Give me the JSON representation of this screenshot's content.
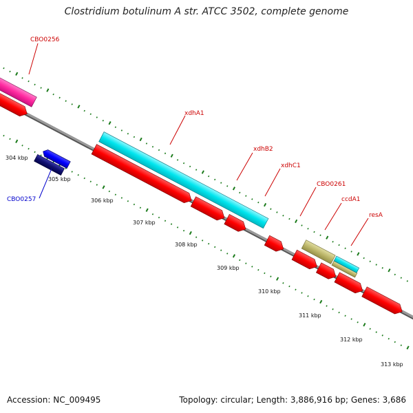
{
  "title": "Clostridium botulinum A str. ATCC 3502, complete genome",
  "footer": {
    "accession": "Accession: NC_009495",
    "topology": "Topology: circular; Length: 3,886,916 bp; Genes: 3,686"
  },
  "colors": {
    "backbone": "#909090",
    "cds_forward": "#ff0000",
    "cds_reverse": "#0000ff",
    "misc_pink": "#ff2aa0",
    "misc_cyan": "#00e5ee",
    "misc_olive": "#bdb76b",
    "label_red": "#cc0000",
    "label_blue": "#0000cc",
    "ticks": "#1a7a1a"
  },
  "ticks": [
    {
      "label": "304 kbp"
    },
    {
      "label": "305 kbp"
    },
    {
      "label": "306 kbp"
    },
    {
      "label": "307 kbp"
    },
    {
      "label": "308 kbp"
    },
    {
      "label": "309 kbp"
    },
    {
      "label": "310 kbp"
    },
    {
      "label": "311 kbp"
    },
    {
      "label": "312 kbp"
    },
    {
      "label": "313 kbp"
    }
  ],
  "genes": {
    "cbo0256": "CBO0256",
    "cbo0257": "CBO0257",
    "xdha1": "xdhA1",
    "xdhb2": "xdhB2",
    "xdhc1": "xdhC1",
    "cbo0261": "CBO0261",
    "ccda1": "ccdA1",
    "resa": "resA"
  }
}
